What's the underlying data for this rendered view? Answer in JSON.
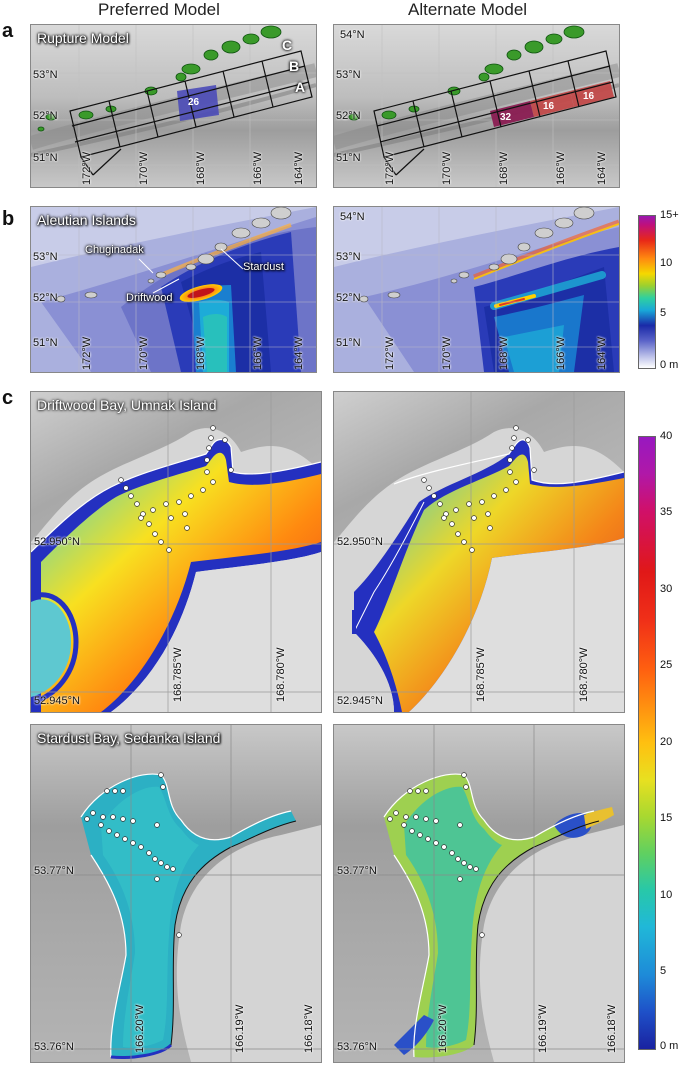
{
  "columns": {
    "left": "Preferred Model",
    "right": "Alternate Model"
  },
  "panel_letters": {
    "a": "a",
    "b": "b",
    "c": "c"
  },
  "row_a": {
    "title": "Rupture Model",
    "lat_labels": [
      "54°N",
      "53°N",
      "52°N",
      "51°N"
    ],
    "lon_labels": [
      "172°W",
      "170°W",
      "168°W",
      "166°W",
      "164°W"
    ],
    "row_labels": [
      "C",
      "B",
      "A"
    ],
    "preferred_segments": [
      "26"
    ],
    "alternate_segments": [
      "32",
      "16",
      "16"
    ],
    "colors": {
      "preferred_segment": "#4b4bb8",
      "alternate_segment": "#b2343f",
      "grid": "#111111"
    }
  },
  "row_b": {
    "title": "Aleutian Islands",
    "lat_labels": [
      "54°N",
      "53°N",
      "52°N",
      "51°N"
    ],
    "lon_labels": [
      "172°W",
      "170°W",
      "168°W",
      "166°W",
      "164°W"
    ],
    "places": [
      "Chuginadak",
      "Driftwood",
      "Stardust"
    ],
    "colorbar": {
      "ticks": [
        "15+",
        "10",
        "5",
        "0 m"
      ],
      "max": 15,
      "min": 0,
      "unit": "m"
    }
  },
  "row_c1": {
    "title": "Driftwood Bay, Umnak Island",
    "lat_labels": [
      "52.950°N",
      "52.945°N"
    ],
    "lon_labels": [
      "168.785°W",
      "168.780°W"
    ]
  },
  "row_c2": {
    "title": "Stardust Bay, Sedanka Island",
    "lat_labels": [
      "53.77°N",
      "53.76°N"
    ],
    "lon_labels": [
      "166.20°W",
      "166.19°W",
      "166.18°W"
    ]
  },
  "colorbar_c": {
    "ticks": [
      "40",
      "35",
      "30",
      "25",
      "20",
      "15",
      "10",
      "5",
      "0 m"
    ],
    "max": 40,
    "min": 0,
    "unit": "m"
  }
}
